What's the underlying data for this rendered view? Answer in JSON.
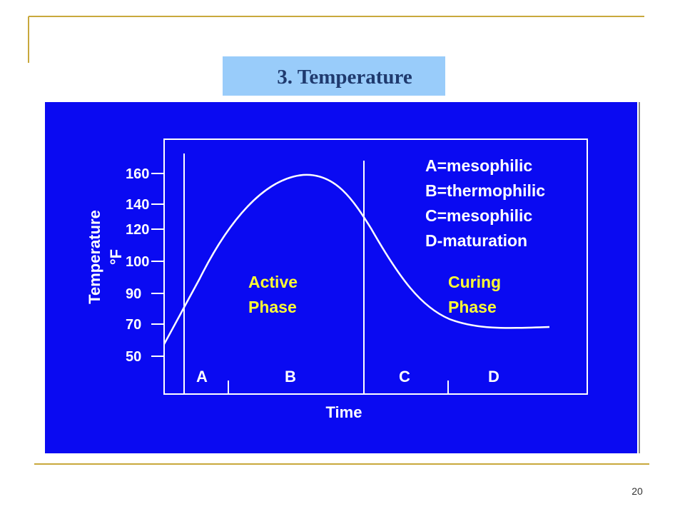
{
  "slide": {
    "title": "3. Temperature",
    "page_number": "20"
  },
  "figure": {
    "y_axis_label": "Temperature",
    "y_axis_unit": "°F",
    "y_tick_labels": [
      "160",
      "140",
      "120",
      "100",
      "90",
      "70",
      "50"
    ],
    "x_axis_label": "Time",
    "stage_labels": [
      "A",
      "B",
      "C",
      "D"
    ],
    "legend": [
      "A=mesophilic",
      "B=thermophilic",
      "C=mesophilic",
      "D-maturation"
    ],
    "phases": [
      {
        "lines": [
          "Active",
          "Phase"
        ]
      },
      {
        "lines": [
          "Curing",
          "Phase"
        ]
      }
    ]
  }
}
